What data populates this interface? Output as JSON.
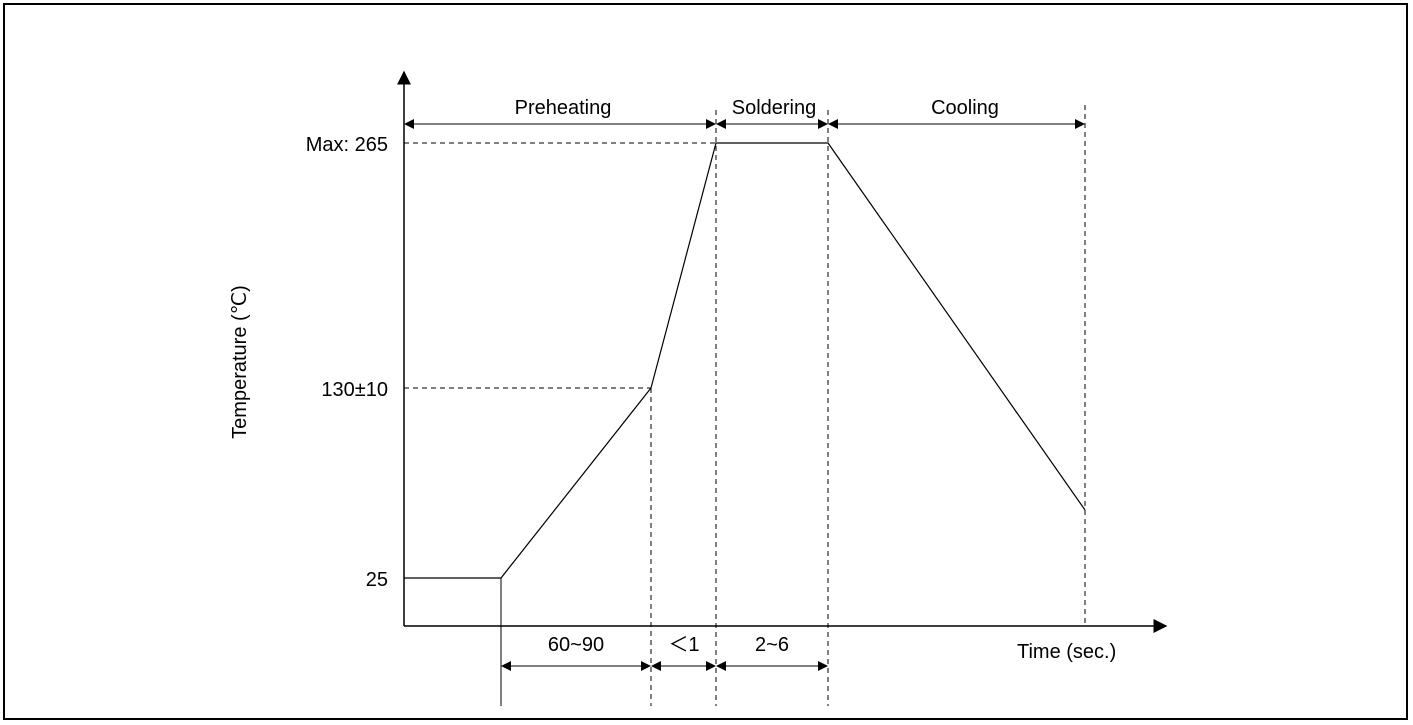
{
  "diagram": {
    "y_axis_label": "Temperature (℃)",
    "x_axis_label": "Time (sec.)",
    "y_ticks": {
      "max": "Max: 265",
      "mid": "130±10",
      "low": "25"
    },
    "phases": {
      "preheating": "Preheating",
      "soldering": "Soldering",
      "cooling": "Cooling"
    },
    "durations": {
      "preheat": "60~90",
      "ramp": "＜1",
      "solder": "2~6"
    },
    "line_color": "#000000"
  }
}
